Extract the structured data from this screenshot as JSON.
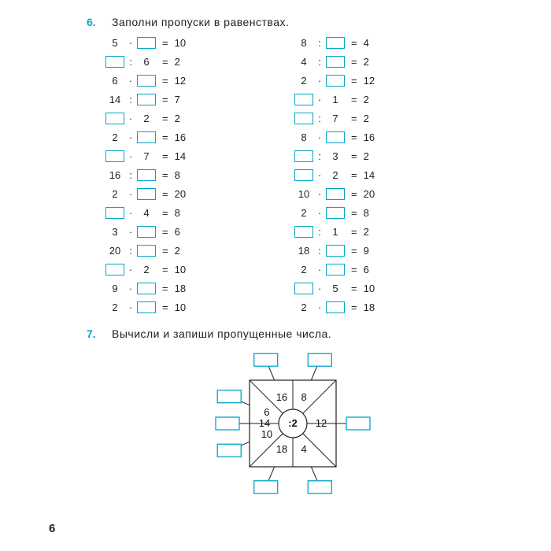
{
  "task6": {
    "num": "6.",
    "title": "Заполни пропуски в равенствах.",
    "rows_left": [
      {
        "a": "5",
        "op": "·",
        "b": null,
        "c": "10"
      },
      {
        "a": null,
        "op": ":",
        "b": "6",
        "c": "2"
      },
      {
        "a": "6",
        "op": "·",
        "b": null,
        "c": "12"
      },
      {
        "a": "14",
        "op": ":",
        "b": null,
        "c": "7"
      },
      {
        "a": null,
        "op": "·",
        "b": "2",
        "c": "2"
      },
      {
        "a": "2",
        "op": "·",
        "b": null,
        "c": "16"
      },
      {
        "a": null,
        "op": "·",
        "b": "7",
        "c": "14"
      },
      {
        "a": "16",
        "op": ":",
        "b": null,
        "c": "8"
      },
      {
        "a": "2",
        "op": "·",
        "b": null,
        "c": "20"
      },
      {
        "a": null,
        "op": "·",
        "b": "4",
        "c": "8"
      },
      {
        "a": "3",
        "op": "·",
        "b": null,
        "c": "6"
      },
      {
        "a": "20",
        "op": ":",
        "b": null,
        "c": "2"
      },
      {
        "a": null,
        "op": "·",
        "b": "2",
        "c": "10"
      },
      {
        "a": "9",
        "op": "·",
        "b": null,
        "c": "18"
      },
      {
        "a": "2",
        "op": "·",
        "b": null,
        "c": "10"
      }
    ],
    "rows_right": [
      {
        "a": "8",
        "op": ":",
        "b": null,
        "c": "4"
      },
      {
        "a": "4",
        "op": ":",
        "b": null,
        "c": "2"
      },
      {
        "a": "2",
        "op": "·",
        "b": null,
        "c": "12"
      },
      {
        "a": null,
        "op": "·",
        "b": "1",
        "c": "2"
      },
      {
        "a": null,
        "op": ":",
        "b": "7",
        "c": "2"
      },
      {
        "a": "8",
        "op": "·",
        "b": null,
        "c": "16"
      },
      {
        "a": null,
        "op": ":",
        "b": "3",
        "c": "2"
      },
      {
        "a": null,
        "op": "·",
        "b": "2",
        "c": "14"
      },
      {
        "a": "10",
        "op": "·",
        "b": null,
        "c": "20"
      },
      {
        "a": "2",
        "op": "·",
        "b": null,
        "c": "8"
      },
      {
        "a": null,
        "op": ":",
        "b": "1",
        "c": "2"
      },
      {
        "a": "18",
        "op": ":",
        "b": null,
        "c": "9"
      },
      {
        "a": "2",
        "op": "·",
        "b": null,
        "c": "6"
      },
      {
        "a": null,
        "op": "·",
        "b": "5",
        "c": "10"
      },
      {
        "a": "2",
        "op": "·",
        "b": null,
        "c": "18"
      }
    ]
  },
  "task7": {
    "num": "7.",
    "title": "Вычисли и запиши пропущенные числа.",
    "center_op": ":2",
    "wedges": [
      {
        "value": "14",
        "angle": 180
      },
      {
        "value": "16",
        "angle": 247
      },
      {
        "value": "8",
        "angle": 293
      },
      {
        "value": "12",
        "angle": 0
      },
      {
        "value": "4",
        "angle": 67
      },
      {
        "value": "18",
        "angle": 113
      },
      {
        "value": "10",
        "angle": 157
      },
      {
        "value": "6",
        "angle": 203
      }
    ],
    "box_color": "#00a6c7",
    "line_color": "#222222",
    "square_half": 55,
    "radius": 18,
    "label_r": 36
  },
  "page_number": "6"
}
